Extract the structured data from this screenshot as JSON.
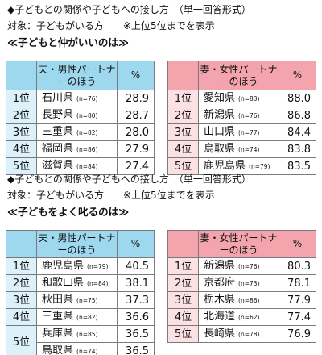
{
  "sections": [
    {
      "heading": "◆子どもとの関係や子どもへの接し方　（単一回答形式）",
      "target": "対象：子どもがいる方　　※上位5位までを表示",
      "subtitle": "≪子どもと仲がいいのは≫",
      "left": {
        "header_label": "夫・男性パートナーのほう",
        "header_pct": "%",
        "rows": [
          {
            "rank": "1位",
            "pref": "石川県",
            "n": "(n=76)",
            "pct": "28.9"
          },
          {
            "rank": "2位",
            "pref": "長野県",
            "n": "(n=80)",
            "pct": "28.7"
          },
          {
            "rank": "3位",
            "pref": "三重県",
            "n": "(n=82)",
            "pct": "28.0"
          },
          {
            "rank": "4位",
            "pref": "福岡県",
            "n": "(n=86)",
            "pct": "27.9"
          },
          {
            "rank": "5位",
            "pref": "滋賀県",
            "n": "(n=84)",
            "pct": "27.4"
          }
        ]
      },
      "right": {
        "header_label": "妻・女性パートナーのほう",
        "header_pct": "%",
        "rows": [
          {
            "rank": "1位",
            "pref": "愛知県",
            "n": "(n=83)",
            "pct": "88.0"
          },
          {
            "rank": "2位",
            "pref": "新潟県",
            "n": "(n=76)",
            "pct": "86.8"
          },
          {
            "rank": "3位",
            "pref": "山口県",
            "n": "(n=77)",
            "pct": "84.4"
          },
          {
            "rank": "4位",
            "pref": "鳥取県",
            "n": "(n=74)",
            "pct": "83.8"
          },
          {
            "rank": "5位",
            "pref": "鹿児島県",
            "n": "(n=79)",
            "pct": "83.5"
          }
        ]
      }
    },
    {
      "heading": "◆子どもとの関係や子どもへの接し方　（単一回答形式）",
      "target": "対象：子どもがいる方　　※上位5位までを表示",
      "subtitle": "≪子どもをよく叱るのは≫",
      "left": {
        "header_label": "夫・男性パートナーのほう",
        "header_pct": "%",
        "rows": [
          {
            "rank": "1位",
            "pref": "鹿児島県",
            "n": "(n=79)",
            "pct": "40.5"
          },
          {
            "rank": "2位",
            "pref": "和歌山県",
            "n": "(n=84)",
            "pct": "38.1"
          },
          {
            "rank": "3位",
            "pref": "秋田県",
            "n": "(n=75)",
            "pct": "37.3"
          },
          {
            "rank": "4位",
            "pref": "三重県",
            "n": "(n=82)",
            "pct": "36.6"
          },
          {
            "rank": "5位",
            "pref": "兵庫県",
            "n": "(n=85)",
            "pct": "36.5"
          },
          {
            "rank": "",
            "pref": "鳥取県",
            "n": "(n=74)",
            "pct": "36.5"
          }
        ]
      },
      "right": {
        "header_label": "妻・女性パートナーのほう",
        "header_pct": "%",
        "rows": [
          {
            "rank": "1位",
            "pref": "新潟県",
            "n": "(n=76)",
            "pct": "80.3"
          },
          {
            "rank": "2位",
            "pref": "京都府",
            "n": "(n=73)",
            "pct": "78.1"
          },
          {
            "rank": "3位",
            "pref": "栃木県",
            "n": "(n=86)",
            "pct": "77.9"
          },
          {
            "rank": "4位",
            "pref": "北海道",
            "n": "(n=62)",
            "pct": "77.4"
          },
          {
            "rank": "5位",
            "pref": "長崎県",
            "n": "(n=78)",
            "pct": "76.9"
          }
        ]
      }
    }
  ]
}
